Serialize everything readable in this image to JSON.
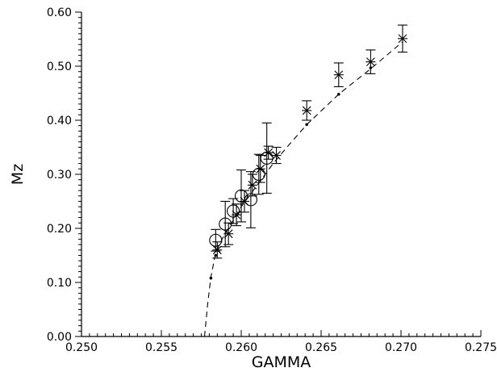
{
  "chart_data": {
    "type": "scatter",
    "xlabel": "GAMMA",
    "ylabel": "Mz",
    "xlim": [
      0.25,
      0.275
    ],
    "ylim": [
      0.0,
      0.6
    ],
    "x_ticks": [
      "0.250",
      "0.255",
      "0.260",
      "0.265",
      "0.270",
      "0.275"
    ],
    "y_ticks": [
      "0.00",
      "0.10",
      "0.20",
      "0.30",
      "0.40",
      "0.50",
      "0.60"
    ],
    "x_tick_values": [
      0.25,
      0.255,
      0.26,
      0.265,
      0.27,
      0.275
    ],
    "y_tick_values": [
      0.0,
      0.1,
      0.2,
      0.3,
      0.4,
      0.5,
      0.6
    ],
    "grid": false,
    "series": [
      {
        "marker": "asterisk",
        "points": [
          {
            "x": 0.2585,
            "y": 0.16,
            "err": 0.015
          },
          {
            "x": 0.2592,
            "y": 0.19,
            "err": 0.02
          },
          {
            "x": 0.2597,
            "y": 0.225,
            "err": 0.02
          },
          {
            "x": 0.2602,
            "y": 0.25,
            "err": 0.02
          },
          {
            "x": 0.2607,
            "y": 0.28,
            "err": 0.02
          },
          {
            "x": 0.2612,
            "y": 0.31,
            "err": 0.025
          },
          {
            "x": 0.2617,
            "y": 0.34,
            "err": 0.012
          },
          {
            "x": 0.2622,
            "y": 0.335,
            "err": 0.015
          },
          {
            "x": 0.2641,
            "y": 0.418,
            "err": 0.018
          },
          {
            "x": 0.2661,
            "y": 0.484,
            "err": 0.022
          },
          {
            "x": 0.2681,
            "y": 0.508,
            "err": 0.022
          },
          {
            "x": 0.2701,
            "y": 0.551,
            "err": 0.025
          }
        ]
      },
      {
        "marker": "circle",
        "points": [
          {
            "x": 0.2584,
            "y": 0.178,
            "err": 0.02
          },
          {
            "x": 0.259,
            "y": 0.208,
            "err": 0.042
          },
          {
            "x": 0.2595,
            "y": 0.232,
            "err": 0.023
          },
          {
            "x": 0.26,
            "y": 0.26,
            "err": 0.048
          },
          {
            "x": 0.2606,
            "y": 0.253,
            "err": 0.052
          },
          {
            "x": 0.2611,
            "y": 0.3,
            "err": 0.037
          },
          {
            "x": 0.2616,
            "y": 0.33,
            "err": 0.065
          }
        ]
      }
    ],
    "fit_curve": {
      "style": "dashed",
      "points": [
        [
          0.2577,
          0.0
        ],
        [
          0.2579,
          0.06
        ],
        [
          0.2581,
          0.11
        ],
        [
          0.2584,
          0.155
        ],
        [
          0.2588,
          0.18
        ],
        [
          0.2593,
          0.205
        ],
        [
          0.26,
          0.24
        ],
        [
          0.261,
          0.28
        ],
        [
          0.262,
          0.32
        ],
        [
          0.263,
          0.355
        ],
        [
          0.2641,
          0.392
        ],
        [
          0.2661,
          0.448
        ],
        [
          0.2681,
          0.495
        ],
        [
          0.2701,
          0.545
        ]
      ],
      "markers_at": [
        [
          0.2581,
          0.108
        ],
        [
          0.2584,
          0.15
        ],
        [
          0.2641,
          0.392
        ],
        [
          0.2661,
          0.448
        ],
        [
          0.2681,
          0.497
        ]
      ]
    }
  }
}
